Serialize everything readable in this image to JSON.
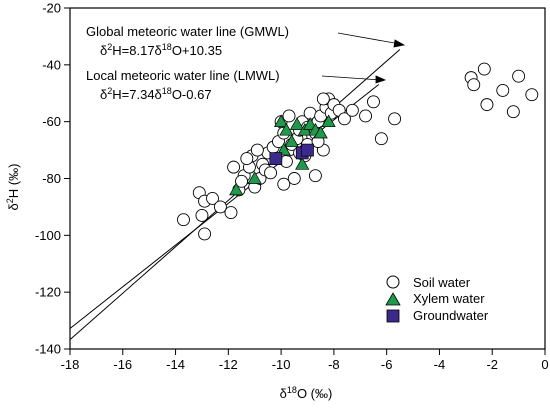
{
  "chart_data": {
    "type": "scatter",
    "title": "",
    "xlabel_prefix": "δ",
    "xlabel_sup": "18",
    "xlabel_suffix": "O (‰)",
    "ylabel_prefix": "δ",
    "ylabel_sup": "2",
    "ylabel_suffix": "H (‰)",
    "xlim": [
      -18,
      0
    ],
    "ylim": [
      -140,
      -20
    ],
    "xticks": [
      -18,
      -16,
      -14,
      -12,
      -10,
      -8,
      -6,
      -4,
      -2,
      0
    ],
    "yticks": [
      -140,
      -120,
      -100,
      -80,
      -60,
      -40,
      -20
    ],
    "grid": false,
    "legend_position": "bottom-right",
    "lines": [
      {
        "name": "Global meteoric water line (GMWL)",
        "equation": "δ²H=8.17δ¹⁸O+10.35",
        "slope": 8.17,
        "intercept": 10.35,
        "x_range": [
          -18,
          -5.5
        ]
      },
      {
        "name": "Local meteoric water line (LMWL)",
        "equation": "δ²H=7.34δ¹⁸O-0.67",
        "slope": 7.34,
        "intercept": -0.67,
        "x_range": [
          -18,
          -6.3
        ]
      }
    ],
    "annotations": {
      "gmwl_label": "Global meteoric water line (GMWL)",
      "gmwl_eq_a": "δ",
      "gmwl_eq_b": "2",
      "gmwl_eq_c": "H=8.17δ",
      "gmwl_eq_d": "18",
      "gmwl_eq_e": "O+10.35",
      "lmwl_label": "Local meteoric water line (LMWL)",
      "lmwl_eq_a": "δ",
      "lmwl_eq_b": "2",
      "lmwl_eq_c": "H=7.34δ",
      "lmwl_eq_d": "18",
      "lmwl_eq_e": "O-0.67"
    },
    "series": [
      {
        "name": "Soil water",
        "marker": "circle",
        "color": "#ffffff",
        "points": [
          [
            -13.7,
            -94.5
          ],
          [
            -13.1,
            -85
          ],
          [
            -12.9,
            -88
          ],
          [
            -13.0,
            -93
          ],
          [
            -12.9,
            -99.5
          ],
          [
            -12.6,
            -87
          ],
          [
            -12.3,
            -90
          ],
          [
            -11.9,
            -92
          ],
          [
            -11.6,
            -84
          ],
          [
            -11.4,
            -79
          ],
          [
            -11.2,
            -76
          ],
          [
            -11.1,
            -72
          ],
          [
            -11.0,
            -83
          ],
          [
            -10.8,
            -80
          ],
          [
            -10.7,
            -75
          ],
          [
            -10.6,
            -77
          ],
          [
            -10.5,
            -71
          ],
          [
            -10.3,
            -69
          ],
          [
            -10.1,
            -67
          ],
          [
            -9.9,
            -64
          ],
          [
            -9.8,
            -74
          ],
          [
            -9.7,
            -70
          ],
          [
            -9.6,
            -68
          ],
          [
            -9.5,
            -80
          ],
          [
            -9.4,
            -66
          ],
          [
            -9.3,
            -63
          ],
          [
            -9.2,
            -60
          ],
          [
            -9.1,
            -72
          ],
          [
            -9.0,
            -62
          ],
          [
            -8.9,
            -57
          ],
          [
            -8.8,
            -65
          ],
          [
            -8.7,
            -79
          ],
          [
            -8.6,
            -60
          ],
          [
            -8.5,
            -58
          ],
          [
            -8.4,
            -70
          ],
          [
            -8.3,
            -55
          ],
          [
            -8.2,
            -52
          ],
          [
            -8.1,
            -57
          ],
          [
            -8.0,
            -54
          ],
          [
            -7.8,
            -56
          ],
          [
            -7.6,
            -59
          ],
          [
            -7.3,
            -56
          ],
          [
            -6.8,
            -58
          ],
          [
            -6.5,
            -53
          ],
          [
            -6.2,
            -66
          ],
          [
            -5.7,
            -59
          ],
          [
            -11.8,
            -76
          ],
          [
            -11.3,
            -73
          ],
          [
            -10.9,
            -70
          ],
          [
            -10.2,
            -73
          ],
          [
            -10.0,
            -60
          ],
          [
            -9.7,
            -58
          ],
          [
            -9.3,
            -71
          ],
          [
            -9.0,
            -68
          ],
          [
            -8.7,
            -64
          ],
          [
            -8.4,
            -52
          ],
          [
            -9.9,
            -82
          ],
          [
            -11.5,
            -81
          ],
          [
            -10.4,
            -78
          ],
          [
            -8.6,
            -67
          ],
          [
            -2.8,
            -44.5
          ],
          [
            -2.7,
            -47
          ],
          [
            -2.3,
            -41.5
          ],
          [
            -2.2,
            -54
          ],
          [
            -1.6,
            -49
          ],
          [
            -1.2,
            -56.5
          ],
          [
            -1.0,
            -44
          ],
          [
            -0.5,
            -50.5
          ]
        ]
      },
      {
        "name": "Xylem water",
        "marker": "triangle",
        "color": "#1e9a4a",
        "points": [
          [
            -11.7,
            -84
          ],
          [
            -11.0,
            -80
          ],
          [
            -10.0,
            -60
          ],
          [
            -9.8,
            -63
          ],
          [
            -9.6,
            -67
          ],
          [
            -9.4,
            -61
          ],
          [
            -9.2,
            -75
          ],
          [
            -9.1,
            -63
          ],
          [
            -8.9,
            -61
          ],
          [
            -8.7,
            -63
          ],
          [
            -8.5,
            -64
          ],
          [
            -8.2,
            -60
          ],
          [
            -9.9,
            -70
          ]
        ]
      },
      {
        "name": "Groundwater",
        "marker": "square",
        "color": "#3b2a8c",
        "points": [
          [
            -10.2,
            -73
          ],
          [
            -9.2,
            -71
          ],
          [
            -9.0,
            -70
          ]
        ]
      }
    ]
  }
}
